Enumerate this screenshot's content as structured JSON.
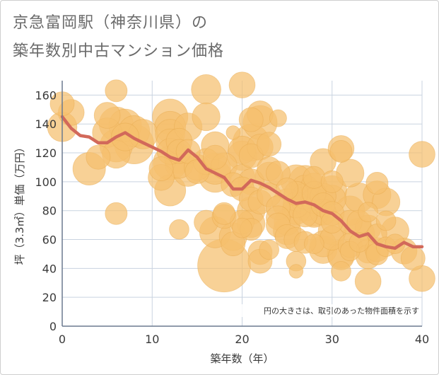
{
  "title_line1": "京急富岡駅（神奈川県）の",
  "title_line2": "築年数別中古マンション価格",
  "chart_data": {
    "type": "scatter",
    "title": "京急富岡駅（神奈川県）の築年数別中古マンション価格",
    "xlabel": "築年数（年）",
    "ylabel": "坪（3.3㎡）単価（万円）",
    "xlim": [
      0,
      40
    ],
    "ylim": [
      0,
      170
    ],
    "xticks": [
      0,
      10,
      20,
      30,
      40
    ],
    "yticks": [
      0,
      20,
      40,
      60,
      80,
      100,
      120,
      140,
      160
    ],
    "grid": true,
    "note": "円の大きさは、取引のあった物件面積を示す",
    "colors": {
      "bubble": "#f5bf6e",
      "bubble_edge": "#e8aa4e",
      "line": "#d2695a",
      "grid": "#c9d3e0",
      "axis": "#6b7a8f"
    },
    "bubbles": [
      {
        "x": 0,
        "y": 154,
        "s": 60
      },
      {
        "x": 0,
        "y": 138,
        "s": 90
      },
      {
        "x": 1,
        "y": 148,
        "s": 70
      },
      {
        "x": 3,
        "y": 109,
        "s": 110
      },
      {
        "x": 4,
        "y": 117,
        "s": 60
      },
      {
        "x": 5,
        "y": 146,
        "s": 70
      },
      {
        "x": 5,
        "y": 134,
        "s": 90
      },
      {
        "x": 6,
        "y": 163,
        "s": 50
      },
      {
        "x": 6,
        "y": 140,
        "s": 120
      },
      {
        "x": 6,
        "y": 125,
        "s": 110
      },
      {
        "x": 6,
        "y": 119,
        "s": 80
      },
      {
        "x": 6,
        "y": 78,
        "s": 50
      },
      {
        "x": 7,
        "y": 139,
        "s": 110
      },
      {
        "x": 7,
        "y": 131,
        "s": 80
      },
      {
        "x": 8,
        "y": 126,
        "s": 160
      },
      {
        "x": 8,
        "y": 135,
        "s": 100
      },
      {
        "x": 9,
        "y": 133,
        "s": 90
      },
      {
        "x": 11,
        "y": 109,
        "s": 60
      },
      {
        "x": 11,
        "y": 103,
        "s": 70
      },
      {
        "x": 12,
        "y": 145,
        "s": 130
      },
      {
        "x": 12,
        "y": 138,
        "s": 100
      },
      {
        "x": 12,
        "y": 133,
        "s": 90
      },
      {
        "x": 12,
        "y": 127,
        "s": 80
      },
      {
        "x": 12,
        "y": 121,
        "s": 70
      },
      {
        "x": 12,
        "y": 113,
        "s": 120
      },
      {
        "x": 12,
        "y": 94,
        "s": 100
      },
      {
        "x": 13,
        "y": 128,
        "s": 70
      },
      {
        "x": 13,
        "y": 121,
        "s": 60
      },
      {
        "x": 13,
        "y": 116,
        "s": 90
      },
      {
        "x": 13,
        "y": 112,
        "s": 80
      },
      {
        "x": 13,
        "y": 67,
        "s": 40
      },
      {
        "x": 14,
        "y": 138,
        "s": 80
      },
      {
        "x": 14,
        "y": 121,
        "s": 60
      },
      {
        "x": 14,
        "y": 107,
        "s": 90
      },
      {
        "x": 15,
        "y": 110,
        "s": 70
      },
      {
        "x": 15,
        "y": 107,
        "s": 60
      },
      {
        "x": 16,
        "y": 164,
        "s": 90
      },
      {
        "x": 16,
        "y": 145,
        "s": 80
      },
      {
        "x": 16,
        "y": 114,
        "s": 70
      },
      {
        "x": 16,
        "y": 72,
        "s": 60
      },
      {
        "x": 17,
        "y": 125,
        "s": 80
      },
      {
        "x": 17,
        "y": 117,
        "s": 60
      },
      {
        "x": 17,
        "y": 109,
        "s": 100
      },
      {
        "x": 17,
        "y": 104,
        "s": 110
      },
      {
        "x": 17,
        "y": 65,
        "s": 100
      },
      {
        "x": 18,
        "y": 111,
        "s": 70
      },
      {
        "x": 18,
        "y": 78,
        "s": 50
      },
      {
        "x": 18,
        "y": 76,
        "s": 60
      },
      {
        "x": 18,
        "y": 42,
        "s": 290
      },
      {
        "x": 19,
        "y": 134,
        "s": 20
      },
      {
        "x": 19,
        "y": 98,
        "s": 60
      },
      {
        "x": 19,
        "y": 62,
        "s": 80
      },
      {
        "x": 19,
        "y": 57,
        "s": 60
      },
      {
        "x": 20,
        "y": 167,
        "s": 70
      },
      {
        "x": 20,
        "y": 122,
        "s": 80
      },
      {
        "x": 20,
        "y": 118,
        "s": 90
      },
      {
        "x": 20,
        "y": 103,
        "s": 70
      },
      {
        "x": 20,
        "y": 95,
        "s": 60
      },
      {
        "x": 20,
        "y": 72,
        "s": 60
      },
      {
        "x": 20,
        "y": 68,
        "s": 40
      },
      {
        "x": 21,
        "y": 143,
        "s": 60
      },
      {
        "x": 21,
        "y": 127,
        "s": 140
      },
      {
        "x": 21,
        "y": 118,
        "s": 60
      },
      {
        "x": 21,
        "y": 100,
        "s": 70
      },
      {
        "x": 21,
        "y": 88,
        "s": 60
      },
      {
        "x": 21,
        "y": 80,
        "s": 80
      },
      {
        "x": 21,
        "y": 71,
        "s": 80
      },
      {
        "x": 21,
        "y": 67,
        "s": 50
      },
      {
        "x": 22,
        "y": 147,
        "s": 70
      },
      {
        "x": 22,
        "y": 141,
        "s": 120
      },
      {
        "x": 22,
        "y": 124,
        "s": 70
      },
      {
        "x": 22,
        "y": 86,
        "s": 60
      },
      {
        "x": 22,
        "y": 51,
        "s": 60
      },
      {
        "x": 22,
        "y": 45,
        "s": 60
      },
      {
        "x": 23,
        "y": 126,
        "s": 60
      },
      {
        "x": 23,
        "y": 109,
        "s": 60
      },
      {
        "x": 23,
        "y": 104,
        "s": 80
      },
      {
        "x": 23,
        "y": 91,
        "s": 60
      },
      {
        "x": 23,
        "y": 53,
        "s": 40
      },
      {
        "x": 24,
        "y": 144,
        "s": 30
      },
      {
        "x": 24,
        "y": 106,
        "s": 60
      },
      {
        "x": 24,
        "y": 82,
        "s": 60
      },
      {
        "x": 24,
        "y": 75,
        "s": 60
      },
      {
        "x": 24,
        "y": 70,
        "s": 60
      },
      {
        "x": 25,
        "y": 95,
        "s": 50
      },
      {
        "x": 25,
        "y": 85,
        "s": 90
      },
      {
        "x": 25,
        "y": 72,
        "s": 70
      },
      {
        "x": 25,
        "y": 66,
        "s": 80
      },
      {
        "x": 25,
        "y": 62,
        "s": 60
      },
      {
        "x": 26,
        "y": 101,
        "s": 100
      },
      {
        "x": 26,
        "y": 92,
        "s": 60
      },
      {
        "x": 26,
        "y": 84,
        "s": 70
      },
      {
        "x": 26,
        "y": 80,
        "s": 80
      },
      {
        "x": 26,
        "y": 60,
        "s": 60
      },
      {
        "x": 26,
        "y": 45,
        "s": 40
      },
      {
        "x": 26,
        "y": 38,
        "s": 20
      },
      {
        "x": 27,
        "y": 100,
        "s": 110
      },
      {
        "x": 27,
        "y": 95,
        "s": 80
      },
      {
        "x": 27,
        "y": 90,
        "s": 70
      },
      {
        "x": 27,
        "y": 87,
        "s": 80
      },
      {
        "x": 27,
        "y": 83,
        "s": 90
      },
      {
        "x": 27,
        "y": 77,
        "s": 60
      },
      {
        "x": 27,
        "y": 58,
        "s": 50
      },
      {
        "x": 28,
        "y": 103,
        "s": 50
      },
      {
        "x": 28,
        "y": 97,
        "s": 70
      },
      {
        "x": 28,
        "y": 92,
        "s": 60
      },
      {
        "x": 28,
        "y": 87,
        "s": 70
      },
      {
        "x": 28,
        "y": 82,
        "s": 140
      },
      {
        "x": 28,
        "y": 78,
        "s": 80
      },
      {
        "x": 28,
        "y": 57,
        "s": 40
      },
      {
        "x": 29,
        "y": 114,
        "s": 70
      },
      {
        "x": 29,
        "y": 90,
        "s": 70
      },
      {
        "x": 29,
        "y": 84,
        "s": 60
      },
      {
        "x": 29,
        "y": 79,
        "s": 70
      },
      {
        "x": 29,
        "y": 57,
        "s": 70
      },
      {
        "x": 29,
        "y": 53,
        "s": 80
      },
      {
        "x": 30,
        "y": 100,
        "s": 50
      },
      {
        "x": 30,
        "y": 94,
        "s": 90
      },
      {
        "x": 30,
        "y": 88,
        "s": 80
      },
      {
        "x": 30,
        "y": 78,
        "s": 60
      },
      {
        "x": 30,
        "y": 72,
        "s": 50
      },
      {
        "x": 30,
        "y": 66,
        "s": 80
      },
      {
        "x": 30,
        "y": 61,
        "s": 60
      },
      {
        "x": 31,
        "y": 123,
        "s": 70
      },
      {
        "x": 31,
        "y": 121,
        "s": 50
      },
      {
        "x": 31,
        "y": 50,
        "s": 80
      },
      {
        "x": 31,
        "y": 48,
        "s": 70
      },
      {
        "x": 31,
        "y": 38,
        "s": 40
      },
      {
        "x": 32,
        "y": 106,
        "s": 80
      },
      {
        "x": 32,
        "y": 80,
        "s": 90
      },
      {
        "x": 32,
        "y": 72,
        "s": 60
      },
      {
        "x": 32,
        "y": 56,
        "s": 60
      },
      {
        "x": 32,
        "y": 52,
        "s": 40
      },
      {
        "x": 33,
        "y": 89,
        "s": 90
      },
      {
        "x": 33,
        "y": 72,
        "s": 60
      },
      {
        "x": 33,
        "y": 64,
        "s": 100
      },
      {
        "x": 33,
        "y": 58,
        "s": 40
      },
      {
        "x": 34,
        "y": 79,
        "s": 40
      },
      {
        "x": 34,
        "y": 68,
        "s": 70
      },
      {
        "x": 34,
        "y": 52,
        "s": 60
      },
      {
        "x": 34,
        "y": 48,
        "s": 60
      },
      {
        "x": 34,
        "y": 31,
        "s": 70
      },
      {
        "x": 35,
        "y": 99,
        "s": 50
      },
      {
        "x": 35,
        "y": 91,
        "s": 80
      },
      {
        "x": 35,
        "y": 64,
        "s": 40
      },
      {
        "x": 35,
        "y": 53,
        "s": 60
      },
      {
        "x": 35,
        "y": 50,
        "s": 50
      },
      {
        "x": 36,
        "y": 86,
        "s": 80
      },
      {
        "x": 36,
        "y": 73,
        "s": 40
      },
      {
        "x": 36,
        "y": 55,
        "s": 40
      },
      {
        "x": 37,
        "y": 66,
        "s": 80
      },
      {
        "x": 37,
        "y": 57,
        "s": 40
      },
      {
        "x": 38,
        "y": 52,
        "s": 70
      },
      {
        "x": 39,
        "y": 47,
        "s": 60
      },
      {
        "x": 40,
        "y": 119,
        "s": 70
      },
      {
        "x": 40,
        "y": 33,
        "s": 70
      }
    ],
    "trend_line": {
      "x": [
        0,
        1,
        2,
        3,
        4,
        5,
        6,
        7,
        8,
        9,
        10,
        11,
        12,
        13,
        14,
        15,
        16,
        17,
        18,
        19,
        20,
        21,
        22,
        23,
        24,
        25,
        26,
        27,
        28,
        29,
        30,
        31,
        32,
        33,
        34,
        35,
        36,
        37,
        38,
        39,
        40
      ],
      "y": [
        145,
        137,
        132,
        131,
        127,
        127,
        131,
        134,
        130,
        127,
        124,
        121,
        117,
        115,
        122,
        117,
        109,
        106,
        103,
        95,
        95,
        101,
        99,
        96,
        92,
        88,
        85,
        86,
        84,
        80,
        78,
        73,
        66,
        62,
        64,
        57,
        55,
        54,
        58,
        55,
        55
      ]
    }
  }
}
